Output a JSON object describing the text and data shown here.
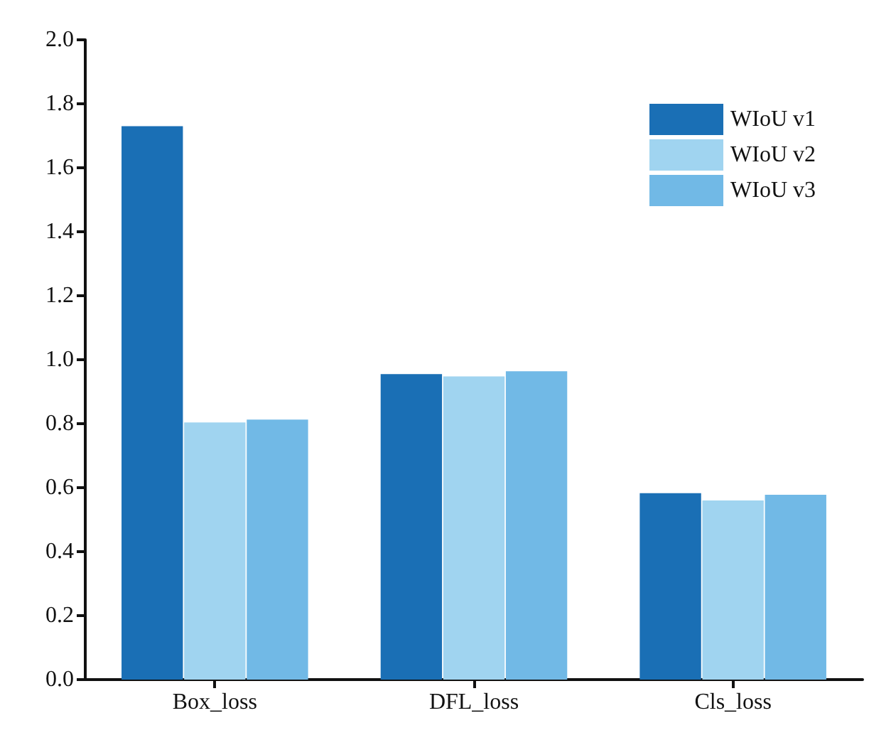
{
  "chart_data": {
    "type": "bar",
    "categories": [
      "Box_loss",
      "DFL_loss",
      "Cls_loss"
    ],
    "series": [
      {
        "name": "WIoU v1",
        "color": "#1a6fb5",
        "values": [
          1.73,
          0.955,
          0.583
        ]
      },
      {
        "name": "WIoU v2",
        "color": "#a0d4f0",
        "values": [
          0.804,
          0.948,
          0.56
        ]
      },
      {
        "name": "WIoU v3",
        "color": "#71b9e6",
        "values": [
          0.813,
          0.964,
          0.578
        ]
      }
    ],
    "ylim": [
      0,
      2.0
    ],
    "yticks": [
      {
        "value": 0,
        "label": "0.0"
      },
      0.2,
      0.4,
      0.6,
      0.8,
      {
        "value": 1,
        "label": "1.0"
      },
      1.2,
      1.4,
      1.6,
      1.8,
      {
        "value": 2,
        "label": "2.0"
      }
    ],
    "grid": false,
    "legend": "top right"
  }
}
